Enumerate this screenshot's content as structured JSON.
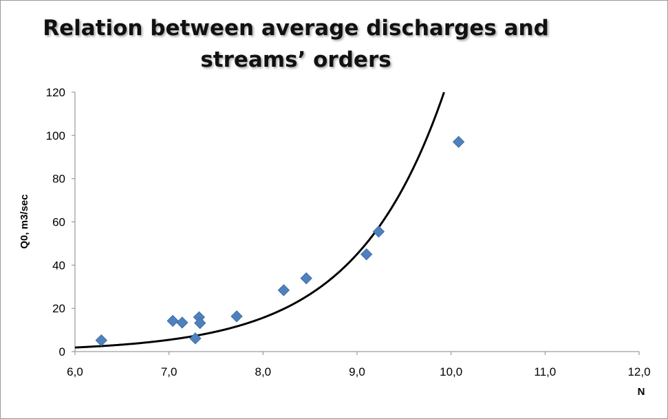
{
  "chart_data": {
    "type": "scatter",
    "title_lines": [
      "Relation between average discharges and",
      "streams’ orders"
    ],
    "xlabel": "N",
    "ylabel": "Q0, m3/sec",
    "xlim": [
      6.0,
      12.0
    ],
    "ylim": [
      0,
      120
    ],
    "x_ticks": [
      "6,0",
      "7,0",
      "8,0",
      "9,0",
      "10,0",
      "11,0",
      "12,0"
    ],
    "y_ticks": [
      "0",
      "20",
      "40",
      "60",
      "80",
      "100",
      "120"
    ],
    "grid": false,
    "legend": "none",
    "marker_color": "#4f81bd",
    "trend_color": "#000000",
    "series": [
      {
        "marker": "diamond",
        "points": [
          {
            "x": 6.28,
            "y": 5.2
          },
          {
            "x": 7.04,
            "y": 14.2
          },
          {
            "x": 7.14,
            "y": 13.4
          },
          {
            "x": 7.28,
            "y": 6.1
          },
          {
            "x": 7.32,
            "y": 15.9
          },
          {
            "x": 7.33,
            "y": 13.2
          },
          {
            "x": 7.72,
            "y": 16.3
          },
          {
            "x": 8.22,
            "y": 28.4
          },
          {
            "x": 8.46,
            "y": 33.9
          },
          {
            "x": 9.1,
            "y": 45.0
          },
          {
            "x": 9.23,
            "y": 55.5
          },
          {
            "x": 10.08,
            "y": 97.0
          }
        ]
      }
    ],
    "trendline": {
      "type": "exponential",
      "a": 0.0033,
      "b": 1.058
    }
  }
}
